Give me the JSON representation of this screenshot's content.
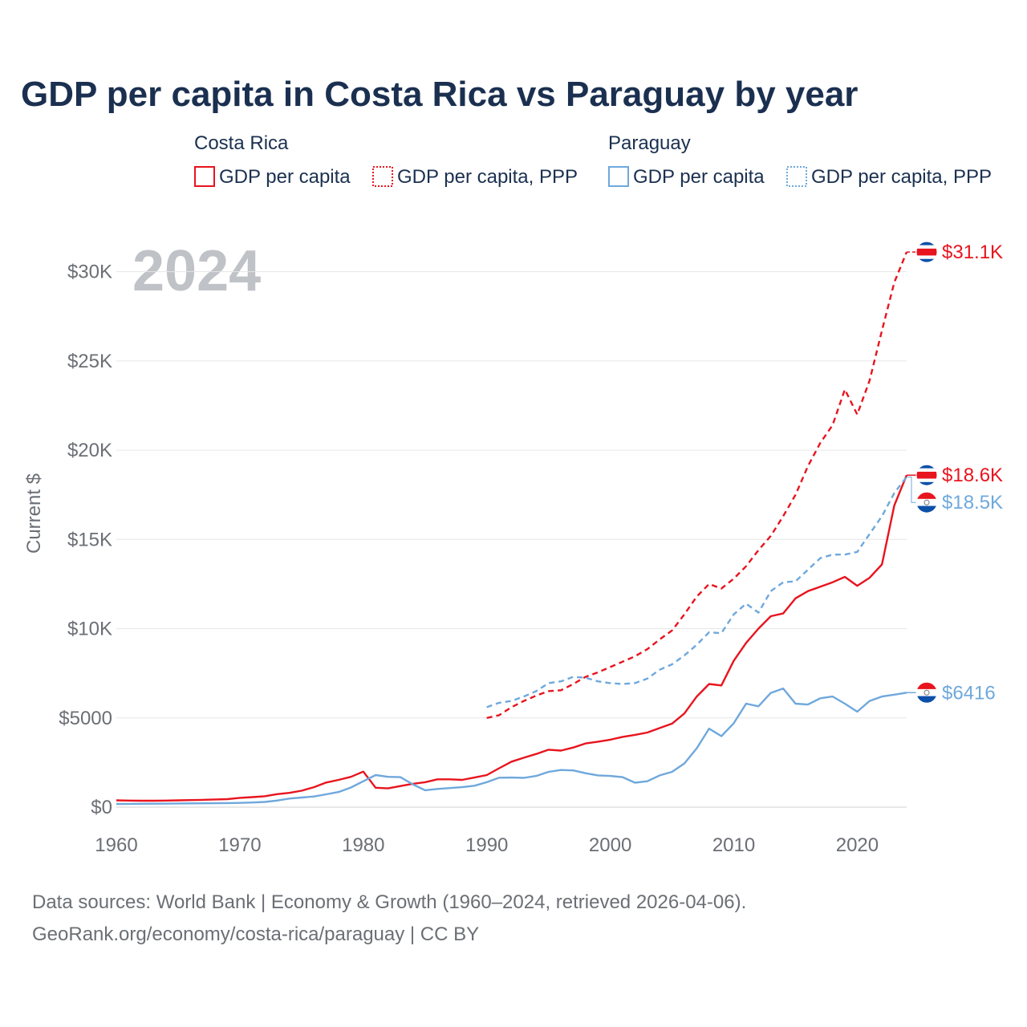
{
  "chart_data": {
    "type": "line",
    "title": "GDP per capita in Costa Rica vs Paraguay by year",
    "year_label": "2024",
    "ylabel": "Current $",
    "xlim": [
      1960,
      2024
    ],
    "ylim": [
      0,
      32500
    ],
    "x_ticks": [
      1960,
      1970,
      1980,
      1990,
      2000,
      2010,
      2020
    ],
    "y_ticks": [
      {
        "value": 0,
        "label": "$0"
      },
      {
        "value": 5000,
        "label": "$5000"
      },
      {
        "value": 10000,
        "label": "$10K"
      },
      {
        "value": 15000,
        "label": "$15K"
      },
      {
        "value": 20000,
        "label": "$20K"
      },
      {
        "value": 25000,
        "label": "$25K"
      },
      {
        "value": 30000,
        "label": "$30K"
      }
    ],
    "colors": {
      "costa_rica": "#e8141e",
      "paraguay": "#6fa8dc",
      "flag_blue": "#0b4fa8",
      "flag_red": "#e8141e"
    },
    "legend": {
      "groups": [
        {
          "name": "Costa Rica",
          "items": [
            "GDP per capita",
            "GDP per capita, PPP"
          ]
        },
        {
          "name": "Paraguay",
          "items": [
            "GDP per capita",
            "GDP per capita, PPP"
          ]
        }
      ]
    },
    "series": [
      {
        "name": "Costa Rica GDP per capita",
        "country": "costa_rica",
        "style": "solid",
        "end_label": "$18.6K",
        "x": [
          1960,
          1961,
          1962,
          1963,
          1964,
          1965,
          1966,
          1967,
          1968,
          1969,
          1970,
          1971,
          1972,
          1973,
          1974,
          1975,
          1976,
          1977,
          1978,
          1979,
          1980,
          1981,
          1982,
          1983,
          1984,
          1985,
          1986,
          1987,
          1988,
          1989,
          1990,
          1991,
          1992,
          1993,
          1994,
          1995,
          1996,
          1997,
          1998,
          1999,
          2000,
          2001,
          2002,
          2003,
          2004,
          2005,
          2006,
          2007,
          2008,
          2009,
          2010,
          2011,
          2012,
          2013,
          2014,
          2015,
          2016,
          2017,
          2018,
          2019,
          2020,
          2021,
          2022,
          2023,
          2024
        ],
        "values": [
          380,
          370,
          360,
          360,
          370,
          380,
          395,
          410,
          430,
          450,
          520,
          560,
          610,
          730,
          800,
          920,
          1120,
          1380,
          1530,
          1700,
          1990,
          1090,
          1050,
          1180,
          1310,
          1400,
          1560,
          1560,
          1530,
          1660,
          1800,
          2180,
          2550,
          2770,
          2980,
          3220,
          3170,
          3340,
          3570,
          3670,
          3780,
          3940,
          4050,
          4180,
          4430,
          4680,
          5250,
          6200,
          6900,
          6820,
          8200,
          9200,
          10000,
          10700,
          10850,
          11700,
          12100,
          12350,
          12600,
          12900,
          12400,
          12850,
          13600,
          16900,
          18600
        ]
      },
      {
        "name": "Costa Rica GDP per capita, PPP",
        "country": "costa_rica",
        "style": "dashed",
        "end_label": "$31.1K",
        "x": [
          1990,
          1991,
          1992,
          1993,
          1994,
          1995,
          1996,
          1997,
          1998,
          1999,
          2000,
          2001,
          2002,
          2003,
          2004,
          2005,
          2006,
          2007,
          2008,
          2009,
          2010,
          2011,
          2012,
          2013,
          2014,
          2015,
          2016,
          2017,
          2018,
          2019,
          2020,
          2021,
          2022,
          2023,
          2024
        ],
        "values": [
          5000,
          5150,
          5600,
          5950,
          6250,
          6500,
          6550,
          6900,
          7300,
          7550,
          7850,
          8150,
          8450,
          8850,
          9400,
          9900,
          10800,
          11800,
          12500,
          12250,
          12800,
          13500,
          14400,
          15200,
          16300,
          17500,
          19100,
          20400,
          21400,
          23400,
          22000,
          23900,
          26700,
          29400,
          31100
        ]
      },
      {
        "name": "Paraguay GDP per capita",
        "country": "paraguay",
        "style": "solid",
        "end_label": "$6416",
        "x": [
          1960,
          1961,
          1962,
          1963,
          1964,
          1965,
          1966,
          1967,
          1968,
          1969,
          1970,
          1971,
          1972,
          1973,
          1974,
          1975,
          1976,
          1977,
          1978,
          1979,
          1980,
          1981,
          1982,
          1983,
          1984,
          1985,
          1986,
          1987,
          1988,
          1989,
          1990,
          1991,
          1992,
          1993,
          1994,
          1995,
          1996,
          1997,
          1998,
          1999,
          2000,
          2001,
          2002,
          2003,
          2004,
          2005,
          2006,
          2007,
          2008,
          2009,
          2010,
          2011,
          2012,
          2013,
          2014,
          2015,
          2016,
          2017,
          2018,
          2019,
          2020,
          2021,
          2022,
          2023,
          2024
        ],
        "values": [
          180,
          185,
          190,
          195,
          200,
          205,
          210,
          215,
          220,
          230,
          240,
          260,
          290,
          370,
          480,
          540,
          600,
          720,
          850,
          1100,
          1450,
          1800,
          1700,
          1680,
          1280,
          950,
          1020,
          1070,
          1120,
          1200,
          1400,
          1650,
          1660,
          1640,
          1750,
          1980,
          2080,
          2060,
          1900,
          1780,
          1750,
          1680,
          1370,
          1450,
          1780,
          1980,
          2450,
          3300,
          4400,
          3980,
          4700,
          5800,
          5650,
          6400,
          6650,
          5800,
          5750,
          6100,
          6200,
          5800,
          5350,
          5950,
          6200,
          6300,
          6416
        ]
      },
      {
        "name": "Paraguay GDP per capita, PPP",
        "country": "paraguay",
        "style": "dashed",
        "end_label": "$18.5K",
        "x": [
          1990,
          1991,
          1992,
          1993,
          1994,
          1995,
          1996,
          1997,
          1998,
          1999,
          2000,
          2001,
          2002,
          2003,
          2004,
          2005,
          2006,
          2007,
          2008,
          2009,
          2010,
          2011,
          2012,
          2013,
          2014,
          2015,
          2016,
          2017,
          2018,
          2019,
          2020,
          2021,
          2022,
          2023,
          2024
        ],
        "values": [
          5600,
          5850,
          5950,
          6200,
          6500,
          6950,
          7050,
          7300,
          7250,
          7050,
          6950,
          6900,
          6950,
          7200,
          7700,
          8000,
          8500,
          9100,
          9800,
          9750,
          10800,
          11400,
          10900,
          12100,
          12600,
          12650,
          13300,
          13950,
          14150,
          14150,
          14300,
          15300,
          16300,
          17600,
          18500
        ]
      }
    ]
  },
  "source": {
    "line1": "Data sources: World Bank | Economy & Growth (1960–2024, retrieved 2026-04-06).",
    "line2": "GeoRank.org/economy/costa-rica/paraguay | CC BY"
  }
}
